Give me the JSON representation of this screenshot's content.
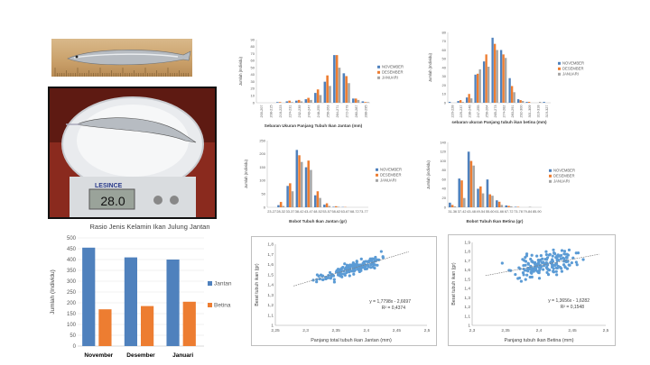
{
  "photos": {
    "fish_ruler": {
      "icon": "fish-on-ruler"
    },
    "fish_scale": {
      "icon": "fish-on-scale",
      "brand": "LESINCE",
      "reading": "28.0"
    }
  },
  "colors": {
    "blue": "#4f81bd",
    "orange": "#ed7d31",
    "gray": "#a5a5a5",
    "scatter": "#5b9bd5",
    "trend": "#7f7f7f"
  },
  "chart_data": [
    {
      "id": "length_male",
      "type": "bar",
      "title": "",
      "xlabel": "Sebaran Ukuran Panjang Tubuh Ikan Jantan (mm)",
      "ylabel": "Jumlah (Individu)",
      "ylim": [
        0,
        90
      ],
      "yticks": [
        0,
        10,
        20,
        30,
        40,
        50,
        60,
        70,
        80,
        90
      ],
      "legend": "right",
      "categories": [
        "200-207",
        "208-215",
        "216-223",
        "224-231",
        "232-239",
        "240-247",
        "248-255",
        "256-263",
        "264-271",
        "272-279",
        "280-287",
        "288-295"
      ],
      "series": [
        {
          "name": "NOVEMBER",
          "values": [
            0,
            0,
            1,
            2,
            3,
            5,
            14,
            30,
            68,
            42,
            6,
            2
          ]
        },
        {
          "name": "DESEMBER",
          "values": [
            0,
            0,
            1,
            3,
            4,
            7,
            19,
            39,
            68,
            38,
            6,
            1
          ]
        },
        {
          "name": "JANUARI",
          "values": [
            0,
            0,
            0,
            1,
            2,
            4,
            11,
            24,
            50,
            28,
            4,
            1
          ]
        }
      ]
    },
    {
      "id": "length_female",
      "type": "bar",
      "title": "",
      "xlabel": "sebaran ukuran Panjang tubuh ikan betina (mm)",
      "ylabel": "Jumlah (Individu)",
      "ylim": [
        0,
        80
      ],
      "yticks": [
        0,
        10,
        20,
        30,
        40,
        50,
        60,
        70,
        80
      ],
      "legend": "right",
      "categories": [
        "220-228",
        "229-237",
        "238-246",
        "247-255",
        "256-264",
        "265-273",
        "274-282",
        "283-291",
        "292-300",
        "301-309",
        "310-318",
        "319-327"
      ],
      "series": [
        {
          "name": "NOVEMBER",
          "values": [
            1,
            2,
            6,
            32,
            47,
            74,
            60,
            28,
            4,
            1,
            0,
            1
          ]
        },
        {
          "name": "DESEMBER",
          "values": [
            0,
            3,
            10,
            33,
            55,
            67,
            55,
            19,
            3,
            1,
            0,
            0
          ]
        },
        {
          "name": "JANUARI",
          "values": [
            0,
            1,
            5,
            38,
            41,
            60,
            51,
            12,
            2,
            0,
            1,
            0
          ]
        }
      ]
    },
    {
      "id": "weight_male",
      "type": "bar",
      "title": "",
      "xlabel": "Bobot Tubuh Ikan Jantan (gr)",
      "ylabel": "Jumlah (Individu)",
      "ylim": [
        0,
        250
      ],
      "yticks": [
        0,
        50,
        100,
        150,
        200,
        250
      ],
      "legend": "right",
      "categories": [
        "23-27",
        "28-32",
        "33-37",
        "38-42",
        "43-47",
        "48-52",
        "53-57",
        "58-62",
        "63-67",
        "68-72",
        "73-77"
      ],
      "series": [
        {
          "name": "NOVEMBER",
          "values": [
            0,
            8,
            80,
            215,
            150,
            45,
            10,
            2,
            1,
            0,
            0
          ]
        },
        {
          "name": "DESEMBER",
          "values": [
            0,
            20,
            90,
            195,
            175,
            60,
            15,
            4,
            1,
            0,
            0
          ]
        },
        {
          "name": "JANUARI",
          "values": [
            0,
            5,
            60,
            170,
            140,
            35,
            5,
            2,
            0,
            0,
            0
          ]
        }
      ]
    },
    {
      "id": "weight_female",
      "type": "bar",
      "title": "",
      "xlabel": "Bobot Tubuh Ikan Betina (gr)",
      "ylabel": "Jumlah (individu)",
      "ylim": [
        0,
        140
      ],
      "yticks": [
        0,
        20,
        40,
        60,
        80,
        100,
        120,
        140
      ],
      "legend": "right",
      "categories": [
        "31-36",
        "37-42",
        "43-48",
        "49-54",
        "55-60",
        "61-66",
        "67-72",
        "73-78",
        "79-84",
        "85-90"
      ],
      "series": [
        {
          "name": "NOVEMBER",
          "values": [
            10,
            62,
            120,
            40,
            60,
            15,
            4,
            1,
            0,
            0
          ]
        },
        {
          "name": "DESEMBER",
          "values": [
            5,
            58,
            100,
            45,
            28,
            12,
            3,
            1,
            0,
            0
          ]
        },
        {
          "name": "JANUARI",
          "values": [
            2,
            20,
            90,
            30,
            25,
            5,
            2,
            0,
            1,
            0
          ]
        }
      ]
    },
    {
      "id": "sex_ratio",
      "type": "bar",
      "title": "Rasio Jenis Kelamin Ikan Julung Jantan",
      "xlabel": "",
      "ylabel": "Jumlah (Individu)",
      "ylim": [
        0,
        500
      ],
      "yticks": [
        0,
        50,
        100,
        150,
        200,
        250,
        300,
        350,
        400,
        450,
        500
      ],
      "legend": "right",
      "categories": [
        "November",
        "Desember",
        "Januari"
      ],
      "series": [
        {
          "name": "Jantan",
          "values": [
            455,
            410,
            400
          ]
        },
        {
          "name": "Betina",
          "values": [
            170,
            185,
            205
          ]
        }
      ]
    },
    {
      "id": "lw_male",
      "type": "scatter",
      "title": "",
      "xlabel": "Panjang total tubuh ikan Jantan (mm)",
      "ylabel": "Berat tubuh ikan (gr)",
      "xlim": [
        2.25,
        2.5
      ],
      "ylim": [
        1,
        1.8
      ],
      "xticks": [
        2.25,
        2.3,
        2.35,
        2.4,
        2.45,
        2.5
      ],
      "yticks": [
        1,
        1.1,
        1.2,
        1.3,
        1.4,
        1.5,
        1.6,
        1.7,
        1.8
      ],
      "equation": "y = 1,7798x - 2,6697",
      "r2": "R² = 0,4374",
      "slope": 1.7798,
      "intercept": -2.6697,
      "r2_value": 0.4374,
      "x_range": [
        2.3,
        2.46
      ],
      "n_points": 180,
      "seed": 7
    },
    {
      "id": "lw_female",
      "type": "scatter",
      "title": "",
      "xlabel": "Panjang tubuh ikan Betina (mm)",
      "ylabel": "Berat tubuh ikan (gr)",
      "xlim": [
        2.3,
        2.5
      ],
      "ylim": [
        1,
        1.9
      ],
      "xticks": [
        2.3,
        2.35,
        2.4,
        2.45,
        2.5
      ],
      "yticks": [
        1,
        1.1,
        1.2,
        1.3,
        1.4,
        1.5,
        1.6,
        1.7,
        1.8,
        1.9
      ],
      "equation": "y = 1,3656x - 1,6282",
      "r2": "R² = 0,1548",
      "slope": 1.3656,
      "intercept": -1.6282,
      "r2_value": 0.1548,
      "x_range": [
        2.34,
        2.48
      ],
      "n_points": 180,
      "seed": 13
    }
  ]
}
